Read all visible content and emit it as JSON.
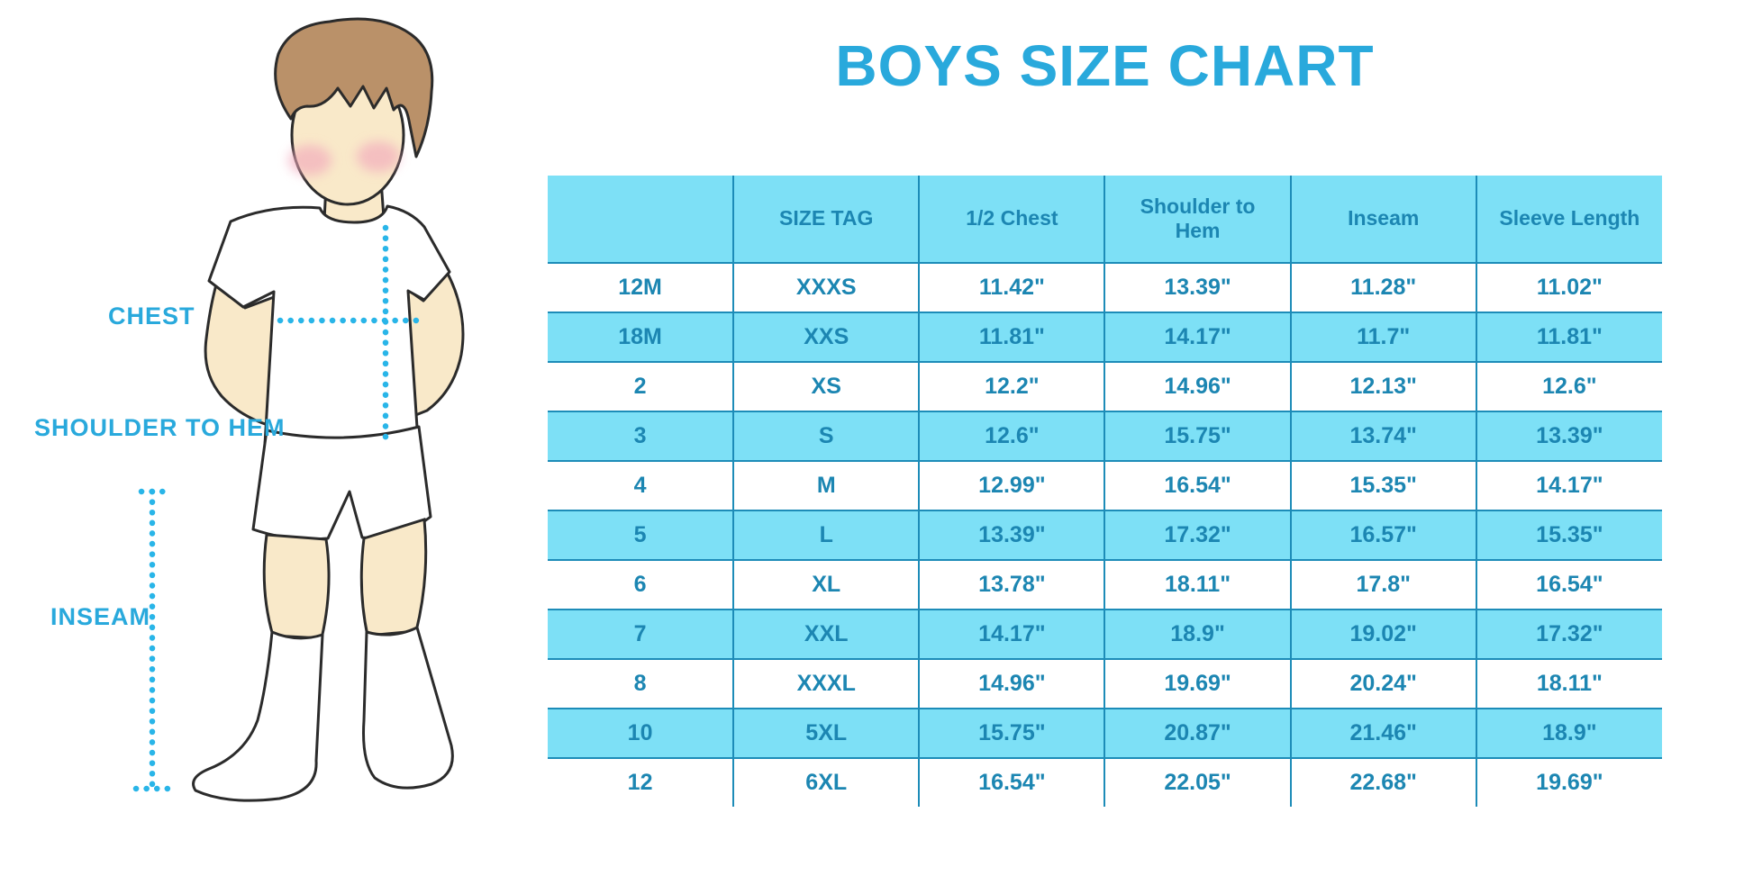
{
  "title": "BOYS SIZE CHART",
  "illustration": {
    "labels": {
      "chest": "CHEST",
      "shoulder_to_hem": "SHOULDER TO HEM",
      "inseam": "INSEAM"
    }
  },
  "colors": {
    "accent_blue": "#29A9DC",
    "table_text_blue": "#1C86B2",
    "row_alt_background": "#7DE0F6",
    "grid_line_blue": "#1D8CB8",
    "dotted_line_cyan": "#29B5E8",
    "skin": "#F9E9C9",
    "hair": "#BA9169"
  },
  "chart_data": {
    "type": "table",
    "title": "BOYS SIZE CHART",
    "columns": [
      "",
      "SIZE TAG",
      "1/2 Chest",
      "Shoulder to Hem",
      "Inseam",
      "Sleeve Length"
    ],
    "rows": [
      [
        "12M",
        "XXXS",
        "11.42\"",
        "13.39\"",
        "11.28\"",
        "11.02\""
      ],
      [
        "18M",
        "XXS",
        "11.81\"",
        "14.17\"",
        "11.7\"",
        "11.81\""
      ],
      [
        "2",
        "XS",
        "12.2\"",
        "14.96\"",
        "12.13\"",
        "12.6\""
      ],
      [
        "3",
        "S",
        "12.6\"",
        "15.75\"",
        "13.74\"",
        "13.39\""
      ],
      [
        "4",
        "M",
        "12.99\"",
        "16.54\"",
        "15.35\"",
        "14.17\""
      ],
      [
        "5",
        "L",
        "13.39\"",
        "17.32\"",
        "16.57\"",
        "15.35\""
      ],
      [
        "6",
        "XL",
        "13.78\"",
        "18.11\"",
        "17.8\"",
        "16.54\""
      ],
      [
        "7",
        "XXL",
        "14.17\"",
        "18.9\"",
        "19.02\"",
        "17.32\""
      ],
      [
        "8",
        "XXXL",
        "14.96\"",
        "19.69\"",
        "20.24\"",
        "18.11\""
      ],
      [
        "10",
        "5XL",
        "15.75\"",
        "20.87\"",
        "21.46\"",
        "18.9\""
      ],
      [
        "12",
        "6XL",
        "16.54\"",
        "22.05\"",
        "22.68\"",
        "19.69\""
      ]
    ]
  }
}
